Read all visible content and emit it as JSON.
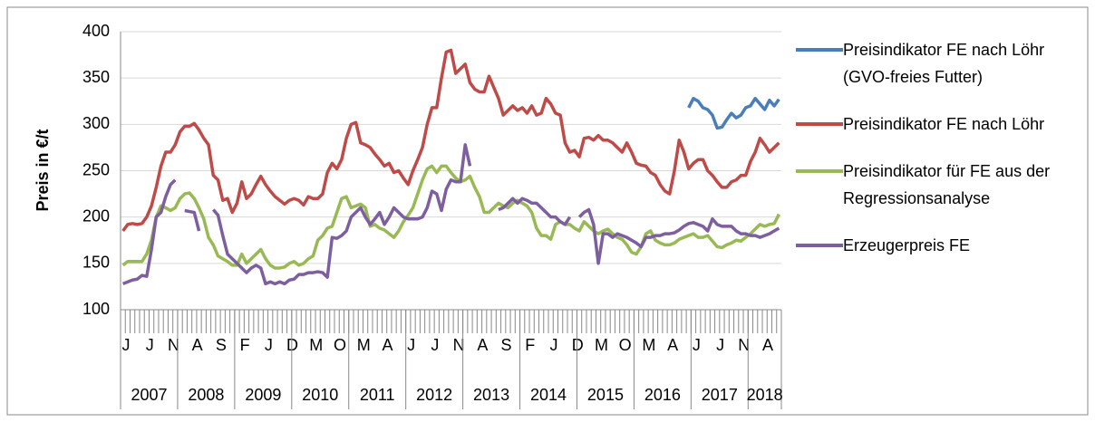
{
  "chart_data": {
    "type": "line",
    "y_label": "Preis in €/t",
    "ylim": [
      100,
      400
    ],
    "yticks": [
      100,
      150,
      200,
      250,
      300,
      350,
      400
    ],
    "grid": true,
    "categories": [
      "J",
      null,
      null,
      null,
      null,
      "J",
      null,
      null,
      null,
      null,
      "N",
      null,
      null,
      null,
      null,
      "A",
      null,
      null,
      null,
      null,
      "S",
      null,
      null,
      null,
      null,
      "F",
      null,
      null,
      null,
      null,
      "J",
      null,
      null,
      null,
      null,
      "D",
      null,
      null,
      null,
      null,
      "M",
      null,
      null,
      null,
      null,
      "O",
      null,
      null,
      null,
      null,
      "M",
      null,
      null,
      null,
      null,
      "A",
      null,
      null,
      null,
      null,
      "J",
      null,
      null,
      null,
      null,
      "J",
      null,
      null,
      null,
      null,
      "N",
      null,
      null,
      null,
      null,
      "A",
      null,
      null,
      null,
      null,
      "S",
      null,
      null,
      null,
      null,
      "F",
      null,
      null,
      null,
      null,
      "J",
      null,
      null,
      null,
      null,
      "D",
      null,
      null,
      null,
      null,
      "M",
      null,
      null,
      null,
      null,
      "O",
      null,
      null,
      null,
      null,
      "M",
      null,
      null,
      null,
      null,
      "A",
      null,
      null,
      null,
      null,
      "J",
      null,
      null,
      null,
      null,
      "J",
      null,
      null,
      null,
      null,
      "N",
      null,
      null,
      null,
      null,
      "A",
      null,
      null,
      null
    ],
    "years": [
      "2007",
      "2008",
      "2009",
      "2010",
      "2011",
      "2012",
      "2013",
      "2014",
      "2015",
      "2016",
      "2017",
      "2018"
    ],
    "series": [
      {
        "name": "Preisindikator FE nach Löhr (GVO-freies Futter)",
        "color": "#4a7ebb",
        "values": [
          null,
          null,
          null,
          null,
          null,
          null,
          null,
          null,
          null,
          null,
          null,
          null,
          null,
          null,
          null,
          null,
          null,
          null,
          null,
          null,
          null,
          null,
          null,
          null,
          null,
          null,
          null,
          null,
          null,
          null,
          null,
          null,
          null,
          null,
          null,
          null,
          null,
          null,
          null,
          null,
          null,
          null,
          null,
          null,
          null,
          null,
          null,
          null,
          null,
          null,
          null,
          null,
          null,
          null,
          null,
          null,
          null,
          null,
          null,
          null,
          null,
          null,
          null,
          null,
          null,
          null,
          null,
          null,
          null,
          null,
          null,
          null,
          null,
          null,
          null,
          null,
          null,
          null,
          null,
          null,
          null,
          null,
          null,
          null,
          null,
          null,
          null,
          null,
          null,
          null,
          null,
          null,
          null,
          null,
          null,
          null,
          null,
          null,
          null,
          null,
          null,
          null,
          null,
          null,
          null,
          null,
          null,
          null,
          null,
          null,
          null,
          null,
          null,
          null,
          null,
          null,
          null,
          null,
          null,
          318,
          328,
          325,
          318,
          316,
          310,
          296,
          297,
          305,
          312,
          307,
          310,
          318,
          320,
          328,
          322,
          316,
          326,
          320,
          327
        ]
      },
      {
        "name": "Preisindikator FE nach Löhr",
        "color": "#be4b48",
        "values": [
          185,
          192,
          193,
          192,
          193,
          200,
          212,
          232,
          255,
          270,
          270,
          278,
          292,
          298,
          298,
          301,
          294,
          285,
          278,
          245,
          240,
          218,
          220,
          205,
          215,
          238,
          220,
          225,
          235,
          244,
          235,
          228,
          222,
          218,
          214,
          218,
          220,
          218,
          213,
          222,
          220,
          220,
          225,
          248,
          258,
          252,
          262,
          285,
          300,
          302,
          280,
          278,
          275,
          268,
          262,
          255,
          258,
          248,
          250,
          242,
          235,
          250,
          262,
          275,
          300,
          318,
          318,
          350,
          378,
          380,
          355,
          360,
          365,
          345,
          338,
          335,
          335,
          352,
          340,
          328,
          310,
          315,
          320,
          315,
          318,
          312,
          320,
          310,
          312,
          328,
          322,
          312,
          310,
          280,
          270,
          272,
          265,
          285,
          286,
          283,
          288,
          283,
          283,
          280,
          275,
          270,
          280,
          270,
          258,
          256,
          255,
          248,
          245,
          235,
          228,
          225,
          250,
          283,
          270,
          252,
          258,
          262,
          262,
          250,
          245,
          238,
          232,
          232,
          238,
          240,
          245,
          245,
          260,
          270,
          285,
          278,
          270,
          275,
          280
        ]
      },
      {
        "name": "Preisindikator für FE aus der Regressionsanalyse",
        "color": "#98b954",
        "values": [
          148,
          152,
          152,
          152,
          152,
          160,
          175,
          200,
          212,
          210,
          207,
          210,
          220,
          225,
          226,
          220,
          210,
          198,
          178,
          170,
          158,
          155,
          152,
          148,
          148,
          160,
          150,
          155,
          160,
          165,
          155,
          148,
          145,
          145,
          146,
          150,
          152,
          148,
          150,
          155,
          158,
          175,
          180,
          188,
          190,
          205,
          220,
          222,
          210,
          212,
          214,
          210,
          190,
          192,
          188,
          186,
          182,
          178,
          185,
          195,
          202,
          210,
          225,
          240,
          252,
          255,
          248,
          255,
          255,
          248,
          242,
          238,
          240,
          244,
          232,
          222,
          205,
          205,
          210,
          215,
          212,
          210,
          215,
          218,
          215,
          212,
          205,
          188,
          180,
          180,
          176,
          192,
          195,
          192,
          192,
          188,
          185,
          195,
          190,
          185,
          182,
          185,
          187,
          182,
          178,
          176,
          170,
          162,
          160,
          168,
          182,
          185,
          175,
          172,
          170,
          170,
          172,
          176,
          178,
          180,
          182,
          178,
          178,
          180,
          174,
          168,
          167,
          170,
          172,
          175,
          174,
          178,
          182,
          187,
          192,
          190,
          192,
          193,
          203
        ]
      },
      {
        "name": "Erzeugerpreis FE",
        "color": "#7d5fa0",
        "values": [
          128,
          130,
          132,
          133,
          137,
          136,
          165,
          200,
          205,
          222,
          235,
          240,
          null,
          207,
          206,
          205,
          185,
          null,
          null,
          208,
          202,
          180,
          160,
          155,
          150,
          145,
          140,
          145,
          148,
          145,
          128,
          130,
          128,
          130,
          128,
          132,
          133,
          138,
          138,
          140,
          140,
          141,
          140,
          135,
          178,
          177,
          180,
          185,
          200,
          205,
          210,
          200,
          192,
          198,
          205,
          192,
          200,
          210,
          205,
          200,
          198,
          198,
          198,
          200,
          210,
          228,
          225,
          207,
          230,
          240,
          238,
          238,
          278,
          255,
          null,
          null,
          null,
          null,
          null,
          208,
          210,
          215,
          220,
          215,
          220,
          218,
          215,
          215,
          210,
          205,
          200,
          200,
          195,
          192,
          200,
          null,
          200,
          205,
          208,
          192,
          150,
          182,
          182,
          178,
          182,
          180,
          178,
          175,
          172,
          168,
          178,
          178,
          180,
          180,
          182,
          182,
          183,
          186,
          190,
          193,
          194,
          192,
          190,
          185,
          198,
          192,
          190,
          190,
          190,
          185,
          182,
          182,
          180,
          180,
          178,
          180,
          182,
          185,
          188
        ]
      }
    ]
  }
}
